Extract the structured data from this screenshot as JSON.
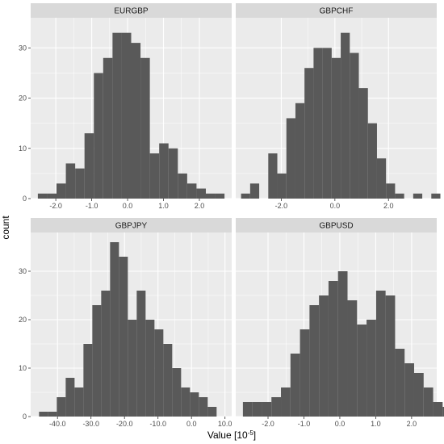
{
  "chart_data": {
    "type": "histogram",
    "facet_layout": "2x2",
    "ylabel": "count",
    "xlabel": "Value [10",
    "xlabel_sup": "-5",
    "xlabel_end": "]",
    "panel_bg": "#ebebeb",
    "strip_bg": "#d9d9d9",
    "bar_color": "#595959",
    "grid_color": "#ffffff",
    "y_ticks": [
      0,
      10,
      20,
      30
    ],
    "panels": [
      {
        "name": "EURGBP",
        "xlim": [
          -2.7,
          2.9
        ],
        "ylim": [
          0,
          36
        ],
        "x_ticks": [
          -2.0,
          -1.0,
          0.0,
          1.0,
          2.0
        ],
        "x_tick_labels": [
          "-2.0",
          "-1.0",
          "0.0",
          "1.0",
          "2.0"
        ],
        "bin_width": 0.26,
        "bin_start": -2.5,
        "counts": [
          1,
          1,
          3,
          7,
          6,
          13,
          25,
          28,
          33,
          33,
          31,
          28,
          9,
          11,
          10,
          5,
          3,
          2,
          1,
          1
        ]
      },
      {
        "name": "GBPCHF",
        "xlim": [
          -3.7,
          3.8
        ],
        "ylim": [
          0,
          36
        ],
        "x_ticks": [
          -2.0,
          0.0,
          2.0
        ],
        "x_tick_labels": [
          "-2.0",
          "0.0",
          "2.0"
        ],
        "bin_width": 0.338,
        "bin_start": -3.5,
        "counts": [
          1,
          3,
          0,
          9,
          5,
          16,
          19,
          26,
          30,
          30,
          28,
          33,
          29,
          22,
          15,
          8,
          3,
          1,
          0,
          1,
          0,
          1
        ]
      },
      {
        "name": "GBPJPY",
        "xlim": [
          -48,
          12
        ],
        "ylim": [
          0,
          38
        ],
        "x_ticks": [
          -40.0,
          -30.0,
          -20.0,
          -10.0,
          0.0,
          10.0
        ],
        "x_tick_labels": [
          "-40.0",
          "-30.0",
          "-20.0",
          "-10.0",
          "0.0",
          "10.0"
        ],
        "bin_width": 2.65,
        "bin_start": -45.5,
        "counts": [
          1,
          1,
          4,
          8,
          6,
          15,
          23,
          26,
          36,
          33,
          20,
          26,
          20,
          18,
          15,
          10,
          6,
          5,
          4,
          2,
          0,
          0,
          0,
          0,
          0,
          1
        ]
      },
      {
        "name": "GBPUSD",
        "xlim": [
          -2.9,
          2.7
        ],
        "ylim": [
          0,
          38
        ],
        "x_ticks": [
          -2.0,
          -1.0,
          0.0,
          1.0,
          2.0
        ],
        "x_tick_labels": [
          "-2.0",
          "-1.0",
          "0.0",
          "1.0",
          "2.0"
        ],
        "bin_width": 0.265,
        "bin_start": -2.7,
        "counts": [
          3,
          3,
          3,
          4,
          6,
          13,
          18,
          23,
          25,
          28,
          30,
          24,
          19,
          20,
          26,
          25,
          14,
          11,
          9,
          6,
          3,
          2
        ]
      }
    ]
  }
}
